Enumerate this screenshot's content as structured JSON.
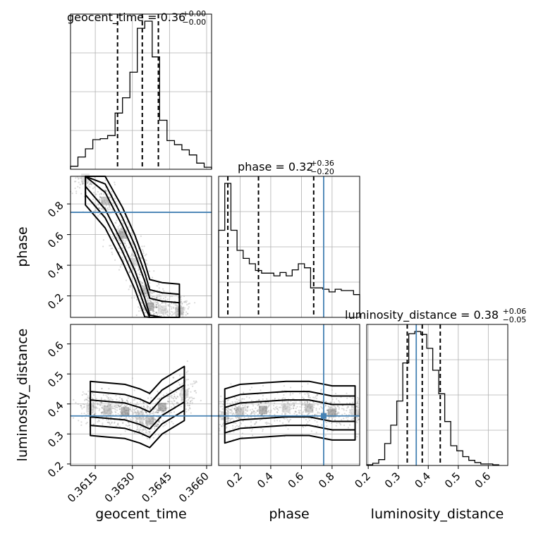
{
  "chart_data": {
    "type": "corner",
    "parameters": [
      "geocent_time",
      "phase",
      "luminosity_distance"
    ],
    "axis_labels": {
      "geocent_time": "geocent_time",
      "phase": "phase",
      "luminosity_distance": "luminosity_distance"
    },
    "ranges": {
      "geocent_time": [
        0.3605,
        0.3662
      ],
      "phase": [
        0.06,
        0.98
      ],
      "luminosity_distance": [
        0.195,
        0.665
      ]
    },
    "ticks": {
      "geocent_time": {
        "values": [
          0.3615,
          0.363,
          0.3645,
          0.366
        ],
        "labels": [
          "0.3615",
          "0.3630",
          "0.3645",
          "0.3660"
        ]
      },
      "phase": {
        "values": [
          0.2,
          0.4,
          0.6,
          0.8
        ],
        "labels": [
          "0.2",
          "0.4",
          "0.6",
          "0.8"
        ]
      },
      "luminosity_distance": {
        "values": [
          0.2,
          0.3,
          0.4,
          0.5,
          0.6
        ],
        "labels": [
          "0.2",
          "0.3",
          "0.4",
          "0.5",
          "0.6"
        ]
      }
    },
    "titles": [
      {
        "param": "geocent_time",
        "text": "geocent_time = 0.36",
        "sup": "+0.00",
        "sub": "−0.00"
      },
      {
        "param": "phase",
        "text": "phase = 0.32",
        "sup": "+0.36",
        "sub": "−0.20"
      },
      {
        "param": "luminosity_distance",
        "text": "luminosity_distance = 0.38",
        "sup": "+0.06",
        "sub": "−0.05"
      }
    ],
    "quantiles": {
      "geocent_time": [
        0.3624,
        0.3634,
        0.36405
      ],
      "phase": [
        0.12,
        0.32,
        0.68
      ],
      "luminosity_distance": [
        0.33,
        0.38,
        0.44
      ]
    },
    "truths": {
      "phase": 0.745,
      "luminosity_distance": 0.36
    },
    "histograms": {
      "geocent_time": {
        "bins": [
          0.3605,
          0.3608,
          0.3611,
          0.3614,
          0.3617,
          0.362,
          0.3623,
          0.3626,
          0.3629,
          0.3632,
          0.3635,
          0.3638,
          0.3641,
          0.3644,
          0.3647,
          0.365,
          0.3653,
          0.3656,
          0.3659,
          0.3662
        ],
        "counts": [
          3,
          12,
          20,
          29,
          30,
          33,
          55,
          70,
          95,
          138,
          145,
          110,
          48,
          28,
          24,
          19,
          14,
          6,
          2
        ]
      },
      "phase": {
        "bins": [
          0.06,
          0.1,
          0.14,
          0.18,
          0.22,
          0.26,
          0.3,
          0.34,
          0.38,
          0.42,
          0.46,
          0.5,
          0.54,
          0.58,
          0.62,
          0.66,
          0.7,
          0.74,
          0.78,
          0.82,
          0.86,
          0.9,
          0.94,
          0.98
        ],
        "counts": [
          130,
          200,
          130,
          100,
          88,
          80,
          70,
          66,
          66,
          62,
          67,
          62,
          71,
          80,
          74,
          44,
          44,
          42,
          38,
          42,
          40,
          40,
          34
        ]
      },
      "luminosity_distance": {
        "bins": [
          0.195,
          0.215,
          0.235,
          0.255,
          0.275,
          0.295,
          0.315,
          0.335,
          0.355,
          0.375,
          0.395,
          0.415,
          0.435,
          0.455,
          0.475,
          0.495,
          0.515,
          0.535,
          0.555,
          0.575,
          0.595,
          0.615,
          0.635
        ],
        "counts": [
          1,
          3,
          8,
          30,
          55,
          88,
          140,
          180,
          183,
          179,
          160,
          130,
          98,
          60,
          27,
          20,
          12,
          7,
          4,
          2,
          2,
          1
        ]
      }
    },
    "density_centers": {
      "phase_vs_geocent_time": [
        [
          0.3611,
          0.97
        ],
        [
          0.3619,
          0.82
        ],
        [
          0.3626,
          0.6
        ],
        [
          0.3631,
          0.42
        ],
        [
          0.3635,
          0.24
        ],
        [
          0.3637,
          0.13
        ],
        [
          0.3642,
          0.11
        ],
        [
          0.3649,
          0.1
        ]
      ],
      "luminosity_distance_vs_geocent_time": [
        [
          0.3613,
          0.385
        ],
        [
          0.362,
          0.38
        ],
        [
          0.3627,
          0.375
        ],
        [
          0.3633,
          0.36
        ],
        [
          0.3637,
          0.345
        ],
        [
          0.3642,
          0.39
        ],
        [
          0.3651,
          0.435
        ]
      ],
      "luminosity_distance_vs_phase": [
        [
          0.1,
          0.36
        ],
        [
          0.2,
          0.375
        ],
        [
          0.35,
          0.38
        ],
        [
          0.5,
          0.385
        ],
        [
          0.65,
          0.385
        ],
        [
          0.8,
          0.37
        ],
        [
          0.95,
          0.37
        ]
      ]
    },
    "grid": true,
    "colors": {
      "truth": "#4682b4",
      "contour": "#000000",
      "sample": "#555555"
    }
  }
}
